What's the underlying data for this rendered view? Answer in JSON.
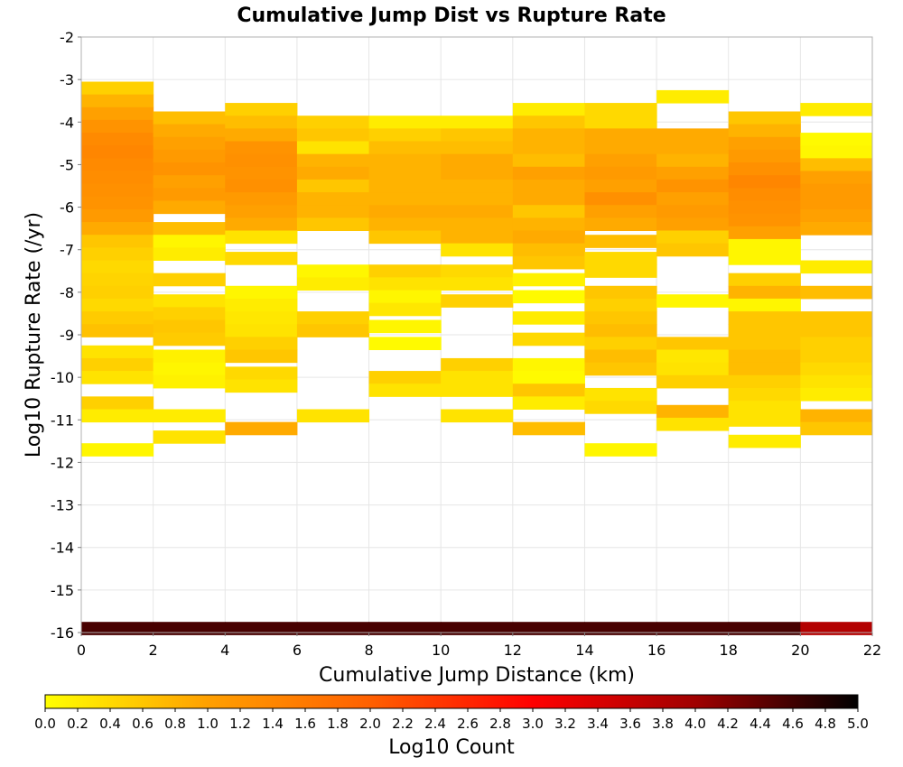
{
  "chart_data": {
    "type": "heatmap",
    "title": "Cumulative Jump Dist vs Rupture Rate",
    "xlabel": "Cumulative Jump Distance (km)",
    "ylabel": "Log10 Rupture Rate (/yr)",
    "xlim": [
      0,
      22
    ],
    "ylim": [
      -16,
      -2
    ],
    "x_ticks": [
      "0",
      "2",
      "4",
      "6",
      "8",
      "10",
      "12",
      "14",
      "16",
      "18",
      "20",
      "22"
    ],
    "y_ticks": [
      "-2",
      "-3",
      "-4",
      "-5",
      "-6",
      "-7",
      "-8",
      "-9",
      "-10",
      "-11",
      "-12",
      "-13",
      "-14",
      "-15",
      "-16"
    ],
    "x_bin_width": 2,
    "y_bin_height": 0.3,
    "grid": true,
    "colorbar": {
      "label": "Log10 Count",
      "range": [
        0,
        5
      ],
      "ticks": [
        "0.0",
        "0.2",
        "0.4",
        "0.6",
        "0.8",
        "1.0",
        "1.2",
        "1.4",
        "1.6",
        "1.8",
        "2.0",
        "2.2",
        "2.4",
        "2.6",
        "2.8",
        "3.0",
        "3.2",
        "3.4",
        "3.6",
        "3.8",
        "4.0",
        "4.2",
        "4.4",
        "4.6",
        "4.8",
        "5.0"
      ],
      "colors": [
        "#ffff00",
        "#ffa000",
        "#ff6000",
        "#ff0000",
        "#a00000",
        "#000000"
      ]
    },
    "columns": [
      {
        "x": 1,
        "cells": [
          [
            -3.2,
            0.5
          ],
          [
            -3.5,
            0.8
          ],
          [
            -3.8,
            1.0
          ],
          [
            -4.1,
            1.2
          ],
          [
            -4.4,
            1.35
          ],
          [
            -4.7,
            1.4
          ],
          [
            -5.0,
            1.35
          ],
          [
            -5.3,
            1.3
          ],
          [
            -5.6,
            1.25
          ],
          [
            -5.9,
            1.2
          ],
          [
            -6.2,
            1.1
          ],
          [
            -6.5,
            0.9
          ],
          [
            -6.8,
            0.6
          ],
          [
            -7.1,
            0.5
          ],
          [
            -7.4,
            0.4
          ],
          [
            -7.7,
            0.45
          ],
          [
            -8.0,
            0.5
          ],
          [
            -8.3,
            0.4
          ],
          [
            -8.6,
            0.55
          ],
          [
            -8.9,
            0.65
          ],
          [
            -9.4,
            0.3
          ],
          [
            -9.7,
            0.5
          ],
          [
            -10.0,
            0.3
          ],
          [
            -10.6,
            0.5
          ],
          [
            -10.9,
            0.2
          ],
          [
            -11.7,
            0.1
          ],
          [
            -15.9,
            4.55
          ]
        ]
      },
      {
        "x": 3,
        "cells": [
          [
            -3.9,
            0.7
          ],
          [
            -4.2,
            0.9
          ],
          [
            -4.5,
            1.0
          ],
          [
            -4.8,
            1.1
          ],
          [
            -5.1,
            1.2
          ],
          [
            -5.4,
            1.0
          ],
          [
            -5.7,
            1.1
          ],
          [
            -6.0,
            0.9
          ],
          [
            -6.5,
            0.7
          ],
          [
            -6.8,
            0.1
          ],
          [
            -7.1,
            0.2
          ],
          [
            -7.7,
            0.5
          ],
          [
            -8.2,
            0.3
          ],
          [
            -8.5,
            0.5
          ],
          [
            -8.8,
            0.6
          ],
          [
            -9.1,
            0.55
          ],
          [
            -9.5,
            0.15
          ],
          [
            -9.8,
            0.1
          ],
          [
            -10.1,
            0.15
          ],
          [
            -10.9,
            0.2
          ],
          [
            -11.4,
            0.3
          ],
          [
            -15.9,
            4.55
          ]
        ]
      },
      {
        "x": 5,
        "cells": [
          [
            -3.7,
            0.5
          ],
          [
            -4.0,
            0.7
          ],
          [
            -4.3,
            0.9
          ],
          [
            -4.6,
            1.2
          ],
          [
            -4.9,
            1.25
          ],
          [
            -5.2,
            1.2
          ],
          [
            -5.5,
            1.25
          ],
          [
            -5.8,
            1.1
          ],
          [
            -6.1,
            1.0
          ],
          [
            -6.4,
            0.9
          ],
          [
            -6.7,
            0.3
          ],
          [
            -7.2,
            0.4
          ],
          [
            -8.0,
            0.1
          ],
          [
            -8.3,
            0.2
          ],
          [
            -8.6,
            0.25
          ],
          [
            -8.9,
            0.3
          ],
          [
            -9.2,
            0.5
          ],
          [
            -9.5,
            0.6
          ],
          [
            -9.9,
            0.4
          ],
          [
            -10.2,
            0.3
          ],
          [
            -11.2,
            0.9
          ],
          [
            -15.9,
            4.55
          ]
        ]
      },
      {
        "x": 7,
        "cells": [
          [
            -4.0,
            0.5
          ],
          [
            -4.3,
            0.6
          ],
          [
            -4.6,
            0.3
          ],
          [
            -4.9,
            0.8
          ],
          [
            -5.2,
            0.9
          ],
          [
            -5.5,
            0.6
          ],
          [
            -5.8,
            0.8
          ],
          [
            -6.1,
            0.8
          ],
          [
            -6.4,
            0.6
          ],
          [
            -7.5,
            0.1
          ],
          [
            -7.8,
            0.2
          ],
          [
            -8.6,
            0.5
          ],
          [
            -8.9,
            0.6
          ],
          [
            -10.9,
            0.3
          ],
          [
            -15.9,
            4.55
          ]
        ]
      },
      {
        "x": 9,
        "cells": [
          [
            -4.0,
            0.2
          ],
          [
            -4.3,
            0.5
          ],
          [
            -4.6,
            0.7
          ],
          [
            -4.9,
            0.8
          ],
          [
            -5.2,
            0.8
          ],
          [
            -5.5,
            0.8
          ],
          [
            -5.8,
            0.8
          ],
          [
            -6.1,
            0.9
          ],
          [
            -6.4,
            0.8
          ],
          [
            -6.7,
            0.6
          ],
          [
            -7.5,
            0.5
          ],
          [
            -7.8,
            0.3
          ],
          [
            -8.1,
            0.1
          ],
          [
            -8.4,
            0.25
          ],
          [
            -8.8,
            0.1
          ],
          [
            -9.2,
            0.05
          ],
          [
            -10.0,
            0.5
          ],
          [
            -10.3,
            0.3
          ],
          [
            -15.9,
            4.55
          ]
        ]
      },
      {
        "x": 11,
        "cells": [
          [
            -4.0,
            0.2
          ],
          [
            -4.3,
            0.6
          ],
          [
            -4.6,
            0.7
          ],
          [
            -4.9,
            0.9
          ],
          [
            -5.2,
            0.9
          ],
          [
            -5.5,
            0.8
          ],
          [
            -5.8,
            0.8
          ],
          [
            -6.1,
            0.9
          ],
          [
            -6.4,
            0.8
          ],
          [
            -6.7,
            0.8
          ],
          [
            -7.0,
            0.3
          ],
          [
            -7.5,
            0.4
          ],
          [
            -7.8,
            0.3
          ],
          [
            -8.2,
            0.5
          ],
          [
            -9.7,
            0.5
          ],
          [
            -10.0,
            0.3
          ],
          [
            -10.3,
            0.3
          ],
          [
            -10.9,
            0.3
          ],
          [
            -15.9,
            4.55
          ]
        ]
      },
      {
        "x": 13,
        "cells": [
          [
            -3.7,
            0.2
          ],
          [
            -4.0,
            0.6
          ],
          [
            -4.3,
            0.8
          ],
          [
            -4.6,
            0.8
          ],
          [
            -4.9,
            0.7
          ],
          [
            -5.2,
            1.0
          ],
          [
            -5.5,
            0.9
          ],
          [
            -5.8,
            0.9
          ],
          [
            -6.1,
            0.6
          ],
          [
            -6.4,
            0.8
          ],
          [
            -6.7,
            0.9
          ],
          [
            -7.0,
            0.7
          ],
          [
            -7.3,
            0.6
          ],
          [
            -7.7,
            0.15
          ],
          [
            -8.1,
            0.05
          ],
          [
            -8.6,
            0.2
          ],
          [
            -9.1,
            0.4
          ],
          [
            -9.7,
            0.1
          ],
          [
            -10.0,
            0.05
          ],
          [
            -10.3,
            0.6
          ],
          [
            -10.6,
            0.2
          ],
          [
            -11.2,
            0.7
          ],
          [
            -15.9,
            4.55
          ]
        ]
      },
      {
        "x": 15,
        "cells": [
          [
            -3.7,
            0.4
          ],
          [
            -4.0,
            0.4
          ],
          [
            -4.3,
            0.9
          ],
          [
            -4.6,
            0.9
          ],
          [
            -4.9,
            1.0
          ],
          [
            -5.2,
            1.1
          ],
          [
            -5.5,
            1.0
          ],
          [
            -5.8,
            1.25
          ],
          [
            -6.1,
            1.0
          ],
          [
            -6.4,
            0.9
          ],
          [
            -6.8,
            0.7
          ],
          [
            -7.2,
            0.4
          ],
          [
            -7.5,
            0.4
          ],
          [
            -8.0,
            0.6
          ],
          [
            -8.3,
            0.5
          ],
          [
            -8.6,
            0.6
          ],
          [
            -8.9,
            0.7
          ],
          [
            -9.2,
            0.5
          ],
          [
            -9.5,
            0.7
          ],
          [
            -9.8,
            0.6
          ],
          [
            -10.4,
            0.3
          ],
          [
            -10.7,
            0.4
          ],
          [
            -11.7,
            0.1
          ],
          [
            -15.9,
            4.55
          ]
        ]
      },
      {
        "x": 17,
        "cells": [
          [
            -3.4,
            0.2
          ],
          [
            -4.3,
            0.9
          ],
          [
            -4.6,
            0.9
          ],
          [
            -4.9,
            0.8
          ],
          [
            -5.2,
            1.0
          ],
          [
            -5.5,
            1.2
          ],
          [
            -5.8,
            1.0
          ],
          [
            -6.1,
            1.1
          ],
          [
            -6.4,
            1.0
          ],
          [
            -6.7,
            0.5
          ],
          [
            -7.0,
            0.6
          ],
          [
            -8.2,
            0.1
          ],
          [
            -9.2,
            0.6
          ],
          [
            -9.5,
            0.25
          ],
          [
            -9.8,
            0.3
          ],
          [
            -10.1,
            0.5
          ],
          [
            -10.8,
            0.8
          ],
          [
            -11.1,
            0.3
          ],
          [
            -15.9,
            4.55
          ]
        ]
      },
      {
        "x": 19,
        "cells": [
          [
            -3.9,
            0.6
          ],
          [
            -4.2,
            0.8
          ],
          [
            -4.5,
            1.0
          ],
          [
            -4.8,
            1.1
          ],
          [
            -5.1,
            1.25
          ],
          [
            -5.4,
            1.4
          ],
          [
            -5.7,
            1.3
          ],
          [
            -6.0,
            1.25
          ],
          [
            -6.3,
            1.2
          ],
          [
            -6.6,
            1.0
          ],
          [
            -6.9,
            0.1
          ],
          [
            -7.2,
            0.1
          ],
          [
            -7.7,
            0.5
          ],
          [
            -8.0,
            0.8
          ],
          [
            -8.3,
            0.1
          ],
          [
            -8.6,
            0.6
          ],
          [
            -8.9,
            0.6
          ],
          [
            -9.2,
            0.6
          ],
          [
            -9.5,
            0.7
          ],
          [
            -9.8,
            0.7
          ],
          [
            -10.1,
            0.5
          ],
          [
            -10.4,
            0.4
          ],
          [
            -10.7,
            0.3
          ],
          [
            -11.0,
            0.3
          ],
          [
            -11.5,
            0.2
          ],
          [
            -15.9,
            4.55
          ]
        ]
      },
      {
        "x": 21,
        "cells": [
          [
            -3.7,
            0.2
          ],
          [
            -4.4,
            0.05
          ],
          [
            -4.7,
            0.1
          ],
          [
            -5.0,
            0.7
          ],
          [
            -5.3,
            1.0
          ],
          [
            -5.6,
            1.1
          ],
          [
            -5.9,
            1.1
          ],
          [
            -6.2,
            1.0
          ],
          [
            -6.5,
            0.9
          ],
          [
            -7.4,
            0.2
          ],
          [
            -8.0,
            0.7
          ],
          [
            -8.6,
            0.6
          ],
          [
            -8.9,
            0.6
          ],
          [
            -9.2,
            0.5
          ],
          [
            -9.5,
            0.5
          ],
          [
            -9.8,
            0.4
          ],
          [
            -10.1,
            0.3
          ],
          [
            -10.4,
            0.2
          ],
          [
            -10.9,
            0.8
          ],
          [
            -11.2,
            0.6
          ],
          [
            -15.9,
            3.8
          ]
        ]
      }
    ]
  }
}
